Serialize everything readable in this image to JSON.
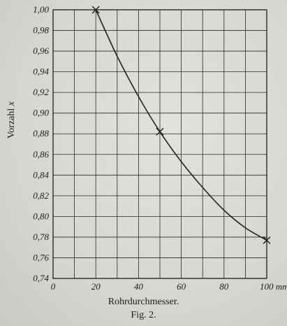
{
  "chart_data": {
    "type": "line",
    "ylabel_text": "Vorzahl",
    "ylabel_var": "x",
    "xlabel": "Rohrdurchmesser.",
    "caption": "Fig. 2.",
    "xlim": [
      0,
      100
    ],
    "ylim": [
      0.74,
      1.0
    ],
    "x_ticks": [
      0,
      20,
      40,
      60,
      80,
      100
    ],
    "x_tick_labels": [
      "0",
      "20",
      "40",
      "60",
      "80",
      "100 mm"
    ],
    "y_ticks": [
      0.74,
      0.76,
      0.78,
      0.8,
      0.82,
      0.84,
      0.86,
      0.88,
      0.9,
      0.92,
      0.94,
      0.96,
      0.98,
      1.0
    ],
    "y_tick_labels": [
      "0,74",
      "0,76",
      "0,78",
      "0,80",
      "0,82",
      "0,84",
      "0,86",
      "0,88",
      "0,90",
      "0,92",
      "0,94",
      "0,96",
      "0,98",
      "1,00"
    ],
    "grid": true,
    "series": [
      {
        "x": [
          20,
          30,
          40,
          50,
          60,
          70,
          80,
          90,
          100
        ],
        "y": [
          1.0,
          0.955,
          0.916,
          0.882,
          0.853,
          0.828,
          0.806,
          0.789,
          0.777
        ],
        "marker_points": [
          [
            20,
            1.0
          ],
          [
            50,
            0.882
          ],
          [
            100,
            0.777
          ]
        ]
      }
    ],
    "line_color": "#222222",
    "grid_color": "#2a2a2a"
  }
}
